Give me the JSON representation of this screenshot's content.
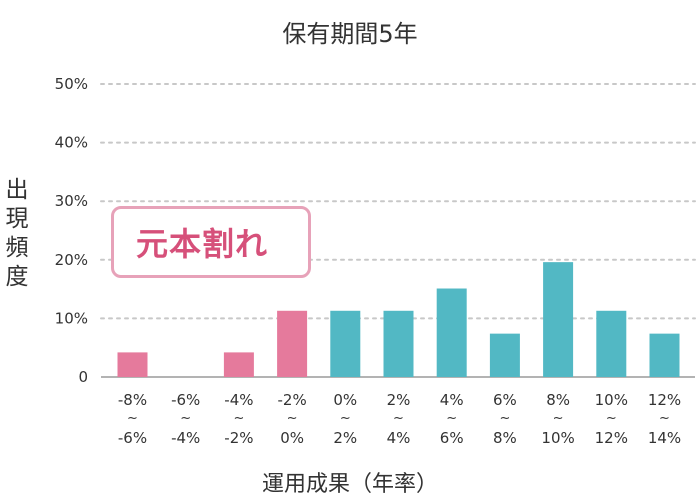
{
  "title": "保有期間5年",
  "ylabel": "出現頻度",
  "xlabel": "運用成果（年率）",
  "note": "元本割れ",
  "colors": {
    "loss": "#e57a9c",
    "gain": "#52b8c4",
    "grid": "#c8c8c8",
    "note_border": "#e7a2b9",
    "note_text": "#d6507a"
  },
  "chart_data": {
    "type": "bar",
    "title": "保有期間5年",
    "xlabel": "運用成果（年率）",
    "ylabel": "出現頻度",
    "ylim": [
      0,
      50
    ],
    "yticks": [
      "0",
      "10%",
      "20%",
      "30%",
      "40%",
      "50%"
    ],
    "grid": true,
    "categories": [
      {
        "top": "-8%",
        "bottom": "-6%"
      },
      {
        "top": "-6%",
        "bottom": "-4%"
      },
      {
        "top": "-4%",
        "bottom": "-2%"
      },
      {
        "top": "-2%",
        "bottom": "0%"
      },
      {
        "top": "0%",
        "bottom": "2%"
      },
      {
        "top": "2%",
        "bottom": "4%"
      },
      {
        "top": "4%",
        "bottom": "6%"
      },
      {
        "top": "6%",
        "bottom": "8%"
      },
      {
        "top": "8%",
        "bottom": "10%"
      },
      {
        "top": "10%",
        "bottom": "12%"
      },
      {
        "top": "12%",
        "bottom": "14%"
      }
    ],
    "values": [
      4.2,
      0,
      4.2,
      11.3,
      11.3,
      11.3,
      15.1,
      7.4,
      19.6,
      11.3,
      7.4
    ],
    "bar_colors": [
      "loss",
      "loss",
      "loss",
      "loss",
      "gain",
      "gain",
      "gain",
      "gain",
      "gain",
      "gain",
      "gain"
    ]
  }
}
